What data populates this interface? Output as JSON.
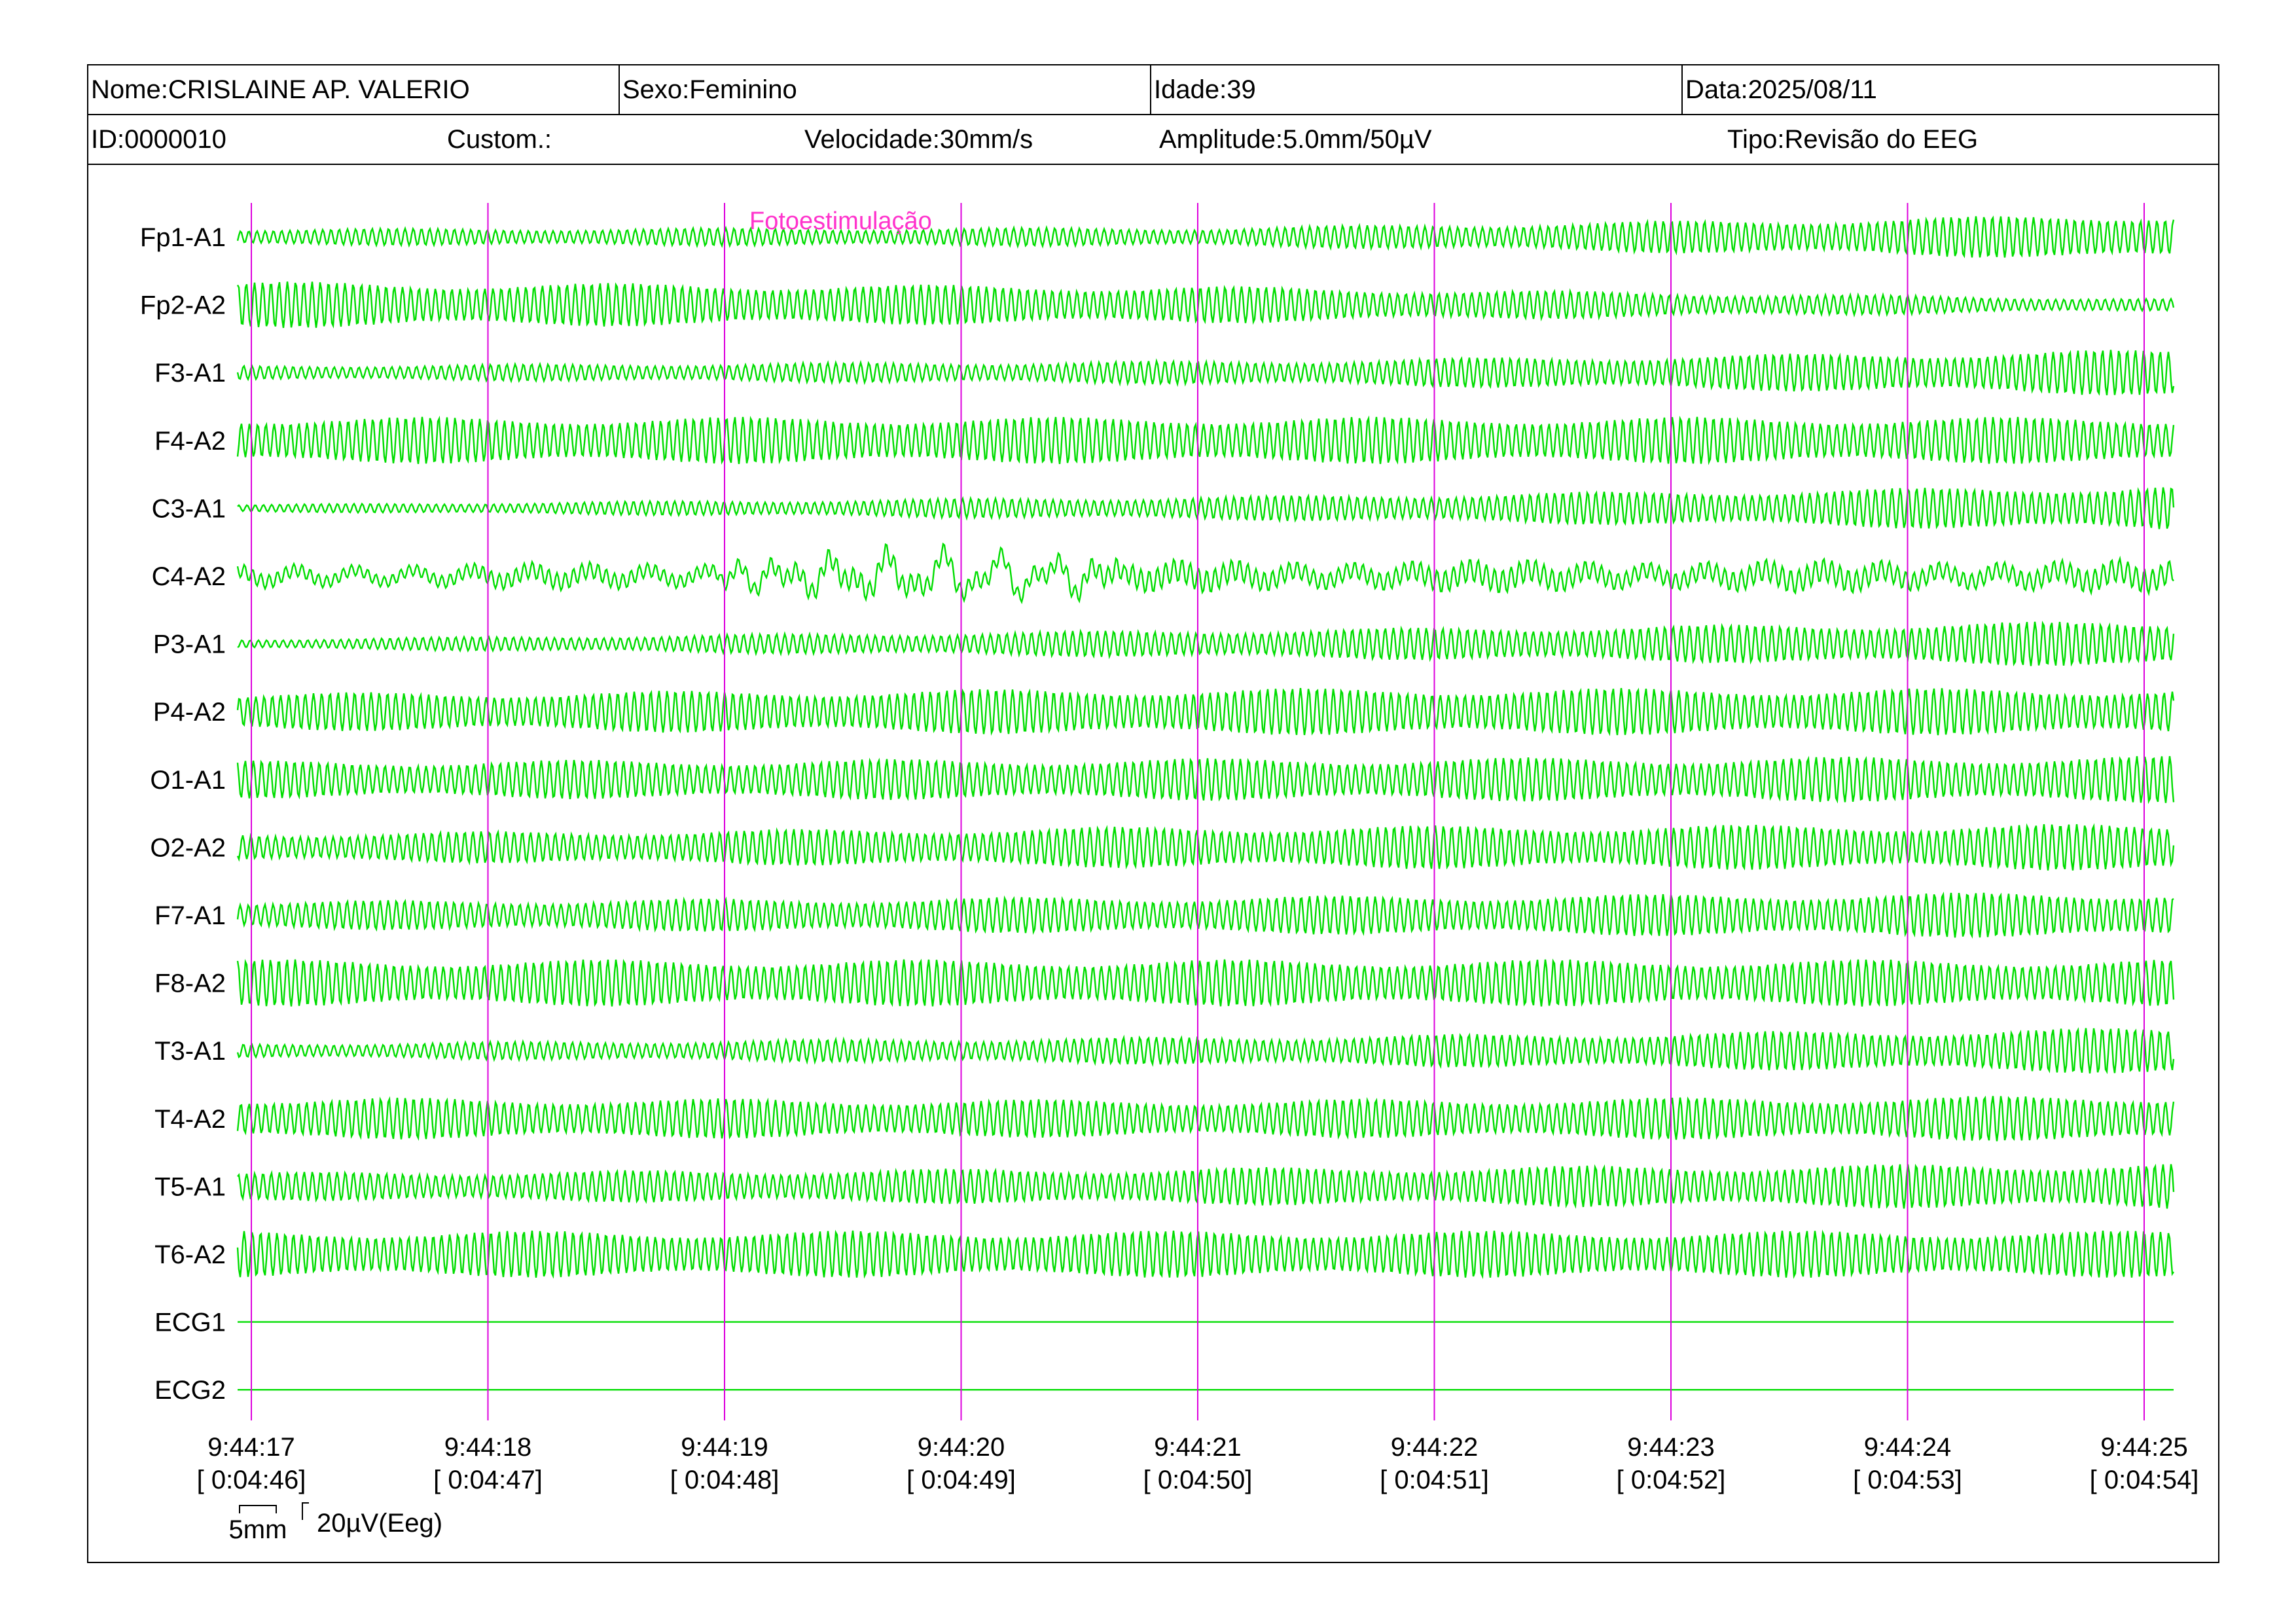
{
  "header": {
    "name": "Nome:CRISLAINE AP. VALERIO",
    "sex": "Sexo:Feminino",
    "age": "Idade:39",
    "date": "Data:2025/08/11",
    "id": "ID:0000010",
    "custom": "Custom.:",
    "speed": "Velocidade:30mm/s",
    "amplitude": "Amplitude:5.0mm/50µV",
    "type": "Tipo:Revisão do EEG"
  },
  "chart_data": {
    "type": "line",
    "channels": [
      "Fp1-A1",
      "Fp2-A2",
      "F3-A1",
      "F4-A2",
      "C3-A1",
      "C4-A2",
      "P3-A1",
      "P4-A2",
      "O1-A1",
      "O2-A2",
      "F7-A1",
      "F8-A2",
      "T3-A1",
      "T4-A2",
      "T5-A1",
      "T6-A2",
      "ECG1",
      "ECG2"
    ],
    "time_ticks": [
      {
        "clock": "9:44:17",
        "elapsed": "[ 0:04:46]"
      },
      {
        "clock": "9:44:18",
        "elapsed": "[ 0:04:47]"
      },
      {
        "clock": "9:44:19",
        "elapsed": "[ 0:04:48]"
      },
      {
        "clock": "9:44:20",
        "elapsed": "[ 0:04:49]"
      },
      {
        "clock": "9:44:21",
        "elapsed": "[ 0:04:50]"
      },
      {
        "clock": "9:44:22",
        "elapsed": "[ 0:04:51]"
      },
      {
        "clock": "9:44:23",
        "elapsed": "[ 0:04:52]"
      },
      {
        "clock": "9:44:24",
        "elapsed": "[ 0:04:53]"
      },
      {
        "clock": "9:44:25",
        "elapsed": "[ 0:04:54]"
      }
    ],
    "event": {
      "label": "Fotoestimulação",
      "time": "9:44:19"
    },
    "scale": {
      "time": "5mm",
      "amplitude": "20µV(Eeg)"
    },
    "trace_color": "#00dd00",
    "marker_color": "#dd00dd",
    "event_label_color": "#ff33cc",
    "amplitude_envelope": {
      "Fp1-A1": [
        0.35,
        0.4,
        1.0
      ],
      "Fp2-A2": [
        1.0,
        0.8,
        0.25
      ],
      "F3-A1": [
        0.3,
        0.5,
        1.0
      ],
      "F4-A2": [
        1.0,
        1.0,
        1.0
      ],
      "C3-A1": [
        0.15,
        0.5,
        1.0
      ],
      "C4-A2": [
        0.3,
        0.5,
        0.5
      ],
      "P3-A1": [
        0.2,
        0.6,
        1.0
      ],
      "P4-A2": [
        0.8,
        1.0,
        1.0
      ],
      "O1-A1": [
        0.8,
        0.9,
        1.0
      ],
      "O2-A2": [
        0.6,
        0.9,
        1.0
      ],
      "F7-A1": [
        0.6,
        0.8,
        1.0
      ],
      "F8-A2": [
        1.0,
        1.0,
        1.0
      ],
      "T3-A1": [
        0.3,
        0.6,
        1.0
      ],
      "T4-A2": [
        0.9,
        0.8,
        1.0
      ],
      "T5-A1": [
        0.6,
        0.8,
        1.0
      ],
      "T6-A2": [
        1.0,
        1.0,
        1.0
      ],
      "ECG1": [
        0,
        0,
        0
      ],
      "ECG2": [
        0,
        0,
        0
      ]
    }
  }
}
